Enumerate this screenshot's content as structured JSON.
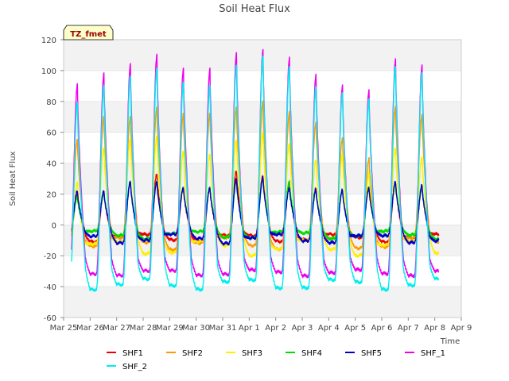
{
  "chart_data": {
    "type": "line",
    "title": "Soil Heat Flux",
    "xlabel": "Time",
    "ylabel": "Soil Heat Flux",
    "ylim": [
      -60,
      120
    ],
    "yticks": [
      -60,
      -40,
      -20,
      0,
      20,
      40,
      60,
      80,
      100,
      120
    ],
    "xlim": [
      0,
      15
    ],
    "xtick_labels": [
      "Mar 25",
      "Mar 26",
      "Mar 27",
      "Mar 28",
      "Mar 29",
      "Mar 30",
      "Mar 31",
      "Apr 1",
      "Apr 2",
      "Apr 3",
      "Apr 4",
      "Apr 5",
      "Apr 6",
      "Apr 7",
      "Apr 8",
      "Apr 9"
    ],
    "data_start": 0.3,
    "data_end": 14.15,
    "annotation": "TZ_fmet",
    "days": [
      0,
      1,
      2,
      3,
      4,
      5,
      6,
      7,
      8,
      9,
      10,
      11,
      12,
      13,
      14
    ],
    "series": [
      {
        "name": "SHF1",
        "color": "#ee0000",
        "peaks": [
          20,
          22,
          28,
          33,
          24,
          24,
          35,
          32,
          28,
          24,
          22,
          24,
          28,
          24,
          0
        ],
        "night_start": -6,
        "night_end": -11
      },
      {
        "name": "SHF2",
        "color": "#ff9900",
        "peaks": [
          55,
          70,
          70,
          76,
          72,
          72,
          76,
          80,
          73,
          66,
          56,
          43,
          76,
          71,
          0
        ],
        "night_start": -8,
        "night_end": -16
      },
      {
        "name": "SHF3",
        "color": "#ffee00",
        "peaks": [
          28,
          50,
          56,
          58,
          48,
          46,
          55,
          60,
          53,
          42,
          46,
          34,
          50,
          44,
          0
        ],
        "night_start": -10,
        "night_end": -20
      },
      {
        "name": "SHF4",
        "color": "#00dd00",
        "peaks": [
          18,
          20,
          28,
          28,
          24,
          24,
          28,
          30,
          28,
          22,
          22,
          24,
          26,
          24,
          0
        ],
        "night_start": -4,
        "night_end": -9
      },
      {
        "name": "SHF5",
        "color": "#0000cc",
        "peaks": [
          22,
          22,
          28,
          28,
          24,
          24,
          30,
          31,
          24,
          23,
          23,
          24,
          28,
          26,
          0
        ],
        "night_start": -6,
        "night_end": -12
      },
      {
        "name": "SHF_1",
        "color": "#ee00ee",
        "peaks": [
          91,
          98,
          104,
          110,
          101,
          101,
          111,
          113,
          108,
          97,
          90,
          87,
          107,
          103,
          0
        ],
        "night_start": -29,
        "night_end": -33
      },
      {
        "name": "SHF_2",
        "color": "#00eeee",
        "peaks": [
          80,
          91,
          97,
          102,
          93,
          91,
          104,
          110,
          103,
          90,
          86,
          82,
          103,
          99,
          0
        ],
        "night_start": -35,
        "night_end": -42
      }
    ]
  }
}
